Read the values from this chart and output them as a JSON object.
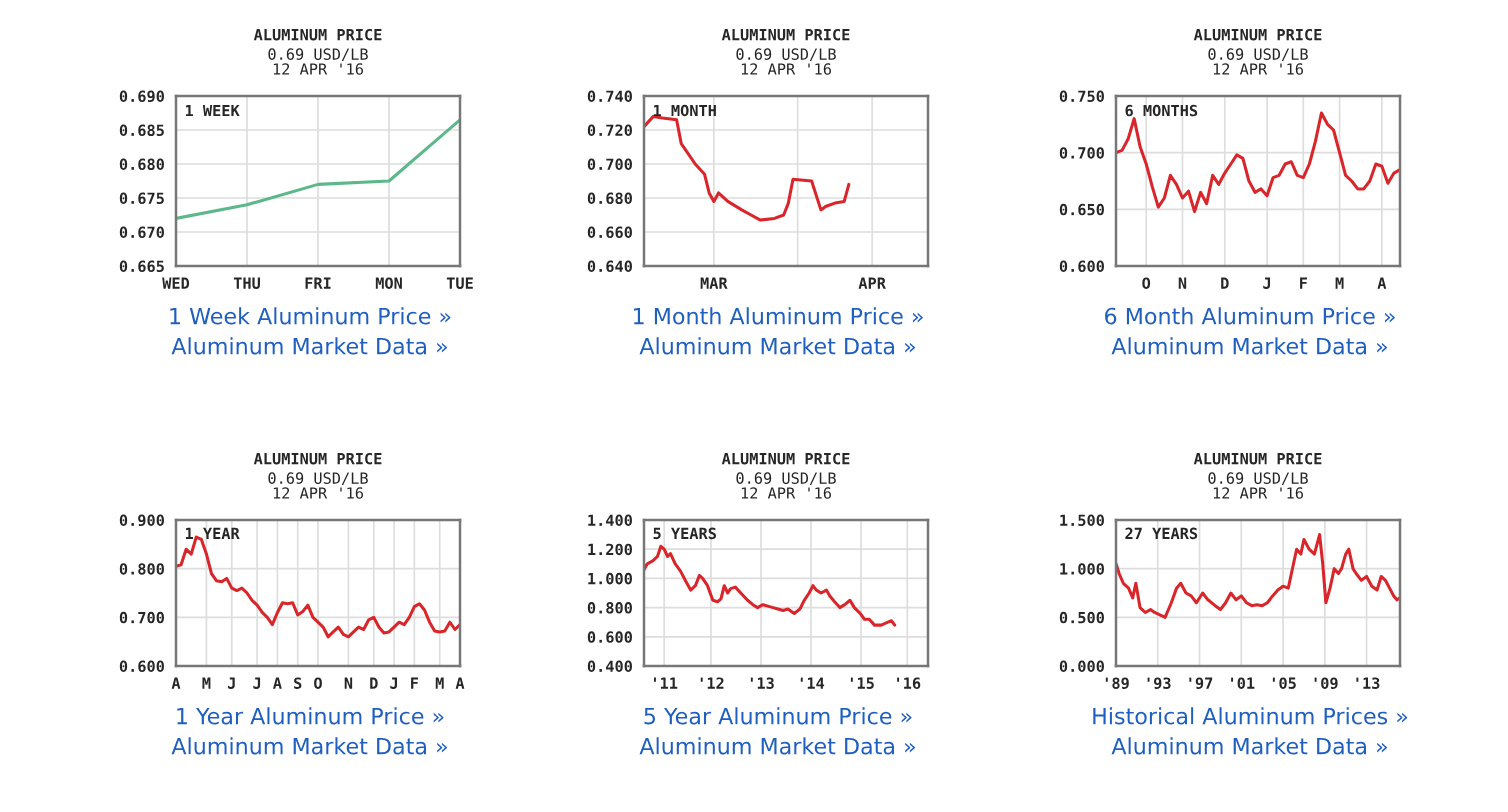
{
  "chart_data": [
    {
      "type": "line",
      "title": "ALUMINUM PRICE",
      "subtitle": "0.69 USD/LB\n12 APR '16",
      "annotations": [
        "1 WEEK",
        "1 Week Aluminum Price »",
        "Aluminum Market Data »"
      ],
      "grid": true,
      "categories": [
        "WED",
        "THU",
        "FRI",
        "MON",
        "TUE"
      ],
      "ylim": [
        0.665,
        0.69
      ],
      "yticks": [
        {
          "value": 0.665,
          "label": "0.665"
        },
        {
          "value": 0.67,
          "label": "0.670"
        },
        {
          "value": 0.675,
          "label": "0.675"
        },
        {
          "value": 0.68,
          "label": "0.680"
        },
        {
          "value": 0.685,
          "label": "0.685"
        },
        {
          "value": 0.69,
          "label": "0.690"
        }
      ],
      "series": [
        {
          "color": "#5cb88a",
          "values": [
            0.672,
            0.674,
            0.677,
            0.6775,
            0.6865
          ]
        }
      ]
    },
    {
      "type": "line",
      "title": "ALUMINUM PRICE",
      "subtitle": "0.69 USD/LB\n12 APR '16",
      "annotations": [
        "1 MONTH",
        "1 Month Aluminum Price »",
        "Aluminum Market Data »"
      ],
      "grid": true,
      "xlim": [
        "2016-02-28",
        "2016-04-29"
      ],
      "xticks": [
        {
          "value": "2016-03-14",
          "label": "MAR"
        },
        {
          "value": "2016-04-01",
          "label": null
        },
        {
          "value": "2016-04-17",
          "label": "APR"
        }
      ],
      "ylim": [
        0.64,
        0.74
      ],
      "yticks": [
        {
          "value": 0.64,
          "label": "0.640"
        },
        {
          "value": 0.66,
          "label": "0.660"
        },
        {
          "value": 0.68,
          "label": "0.680"
        },
        {
          "value": 0.7,
          "label": "0.700"
        },
        {
          "value": 0.72,
          "label": "0.720"
        },
        {
          "value": 0.74,
          "label": "0.740"
        }
      ],
      "series": [
        {
          "color": "#d9262b",
          "x": [
            "2016-02-28",
            "2016-03-01",
            "2016-03-03",
            "2016-03-06",
            "2016-03-07",
            "2016-03-08",
            "2016-03-10",
            "2016-03-12",
            "2016-03-13",
            "2016-03-14",
            "2016-03-15",
            "2016-03-17",
            "2016-03-20",
            "2016-03-22",
            "2016-03-24",
            "2016-03-27",
            "2016-03-29",
            "2016-03-30",
            "2016-03-31",
            "2016-04-04",
            "2016-04-06",
            "2016-04-07",
            "2016-04-09",
            "2016-04-11",
            "2016-04-12"
          ],
          "values": [
            0.722,
            0.728,
            0.727,
            0.726,
            0.712,
            0.708,
            0.7,
            0.694,
            0.683,
            0.678,
            0.683,
            0.678,
            0.673,
            0.67,
            0.667,
            0.668,
            0.67,
            0.677,
            0.691,
            0.69,
            0.673,
            0.675,
            0.677,
            0.678,
            0.688
          ]
        }
      ]
    },
    {
      "type": "line",
      "title": "ALUMINUM PRICE",
      "subtitle": "0.69 USD/LB\n12 APR '16",
      "annotations": [
        "6 MONTHS",
        "6 Month Aluminum Price »",
        "Aluminum Market Data »"
      ],
      "grid": true,
      "categories": [
        null,
        null,
        null,
        null,
        null,
        "O",
        null,
        null,
        null,
        null,
        null,
        "N",
        null,
        null,
        null,
        null,
        null,
        null,
        "D",
        null,
        null,
        null,
        null,
        null,
        null,
        "J",
        null,
        null,
        null,
        null,
        null,
        "F",
        null,
        null,
        null,
        null,
        null,
        "M",
        null,
        null,
        null,
        null,
        null,
        null,
        "A",
        null,
        null,
        null
      ],
      "ylim": [
        0.6,
        0.75
      ],
      "yticks": [
        {
          "value": 0.6,
          "label": "0.600"
        },
        {
          "value": 0.65,
          "label": "0.650"
        },
        {
          "value": 0.7,
          "label": "0.700"
        },
        {
          "value": 0.75,
          "label": "0.750"
        }
      ],
      "series": [
        {
          "color": "#d9262b",
          "values": [
            0.7,
            0.702,
            0.712,
            0.73,
            0.705,
            0.69,
            0.67,
            0.652,
            0.66,
            0.68,
            0.672,
            0.66,
            0.666,
            0.648,
            0.665,
            0.655,
            0.68,
            0.672,
            0.682,
            0.69,
            0.698,
            0.695,
            0.675,
            0.665,
            0.668,
            0.662,
            0.678,
            0.68,
            0.69,
            0.692,
            0.68,
            0.678,
            0.69,
            0.71,
            0.735,
            0.725,
            0.72,
            0.7,
            0.68,
            0.675,
            0.668,
            0.668,
            0.675,
            0.69,
            0.688,
            0.673,
            0.682,
            0.685
          ]
        }
      ]
    },
    {
      "type": "line",
      "title": "ALUMINUM PRICE",
      "subtitle": "0.69 USD/LB\n12 APR '16",
      "annotations": [
        "1 YEAR",
        "1 Year Aluminum Price »",
        "Aluminum Market Data »"
      ],
      "grid": true,
      "categories": [
        "A",
        null,
        null,
        null,
        null,
        null,
        "M",
        null,
        null,
        null,
        null,
        "J",
        null,
        null,
        null,
        null,
        "J",
        null,
        null,
        null,
        "A",
        null,
        null,
        null,
        "S",
        null,
        null,
        null,
        "O",
        null,
        null,
        null,
        null,
        null,
        "N",
        null,
        null,
        null,
        null,
        "D",
        null,
        null,
        null,
        "J",
        null,
        null,
        null,
        "F",
        null,
        null,
        null,
        null,
        "M",
        null,
        null,
        null,
        "A"
      ],
      "ylim": [
        0.6,
        0.9
      ],
      "yticks": [
        {
          "value": 0.6,
          "label": "0.600"
        },
        {
          "value": 0.7,
          "label": "0.700"
        },
        {
          "value": 0.8,
          "label": "0.800"
        },
        {
          "value": 0.9,
          "label": "0.900"
        }
      ],
      "series": [
        {
          "color": "#d9262b",
          "values": [
            0.805,
            0.808,
            0.84,
            0.83,
            0.865,
            0.86,
            0.83,
            0.79,
            0.775,
            0.773,
            0.78,
            0.76,
            0.755,
            0.76,
            0.75,
            0.735,
            0.725,
            0.71,
            0.7,
            0.685,
            0.71,
            0.73,
            0.728,
            0.73,
            0.705,
            0.712,
            0.725,
            0.7,
            0.69,
            0.68,
            0.66,
            0.67,
            0.68,
            0.665,
            0.66,
            0.67,
            0.68,
            0.675,
            0.695,
            0.7,
            0.68,
            0.668,
            0.67,
            0.68,
            0.69,
            0.685,
            0.7,
            0.722,
            0.728,
            0.715,
            0.69,
            0.672,
            0.67,
            0.672,
            0.69,
            0.675,
            0.685
          ]
        }
      ]
    },
    {
      "type": "line",
      "title": "ALUMINUM PRICE",
      "subtitle": "0.69 USD/LB\n12 APR '16",
      "annotations": [
        "5 YEARS",
        "5 Year Aluminum Price »",
        "Aluminum Market Data »"
      ],
      "grid": true,
      "xlim": [
        "2010-11-21",
        "2016-10-15"
      ],
      "xticks": [
        {
          "value": "2011-04-23",
          "label": "'11"
        },
        {
          "value": "2012-04-12",
          "label": "'12"
        },
        {
          "value": "2013-04-27",
          "label": "'13"
        },
        {
          "value": "2014-05-11",
          "label": "'14"
        },
        {
          "value": "2015-05-26",
          "label": "'15"
        },
        {
          "value": "2016-05-11",
          "label": "'16"
        }
      ],
      "ylim": [
        0.4,
        1.4
      ],
      "yticks": [
        {
          "value": 0.4,
          "label": "0.400"
        },
        {
          "value": 0.6,
          "label": "0.600"
        },
        {
          "value": 0.8,
          "label": "0.800"
        },
        {
          "value": 1.0,
          "label": "1.000"
        },
        {
          "value": 1.2,
          "label": "1.200"
        },
        {
          "value": 1.4,
          "label": "1.400"
        }
      ],
      "series": [
        {
          "color": "#d9262b",
          "x": [
            "2010-11-21",
            "2010-12-16",
            "2011-01-26",
            "2011-03-03",
            "2011-03-29",
            "2011-04-23",
            "2011-05-19",
            "2011-06-10",
            "2011-07-16",
            "2011-08-25",
            "2011-10-04",
            "2011-11-10",
            "2011-12-16",
            "2012-01-15",
            "2012-02-09",
            "2012-03-17",
            "2012-04-26",
            "2012-06-01",
            "2012-06-27",
            "2012-07-22",
            "2012-08-17",
            "2012-09-08",
            "2012-10-14",
            "2012-11-24",
            "2013-01-15",
            "2013-02-24",
            "2013-04-01",
            "2013-05-11",
            "2013-06-17",
            "2013-07-27",
            "2013-09-02",
            "2013-10-12",
            "2013-11-17",
            "2014-01-04",
            "2014-02-16",
            "2014-03-21",
            "2014-04-27",
            "2014-05-26",
            "2014-06-21",
            "2014-07-27",
            "2014-09-05",
            "2014-10-01",
            "2014-11-06",
            "2014-12-16",
            "2015-01-22",
            "2015-03-03",
            "2015-04-05",
            "2015-05-19",
            "2015-06-21",
            "2015-07-27",
            "2015-09-05",
            "2015-10-26",
            "2015-12-16",
            "2016-01-11",
            "2016-02-06"
          ],
          "values": [
            1.06,
            1.1,
            1.12,
            1.15,
            1.22,
            1.2,
            1.15,
            1.17,
            1.1,
            1.05,
            0.98,
            0.92,
            0.95,
            1.02,
            1.0,
            0.95,
            0.85,
            0.84,
            0.86,
            0.95,
            0.9,
            0.93,
            0.94,
            0.9,
            0.85,
            0.82,
            0.8,
            0.82,
            0.81,
            0.8,
            0.79,
            0.78,
            0.79,
            0.76,
            0.79,
            0.85,
            0.9,
            0.95,
            0.92,
            0.9,
            0.92,
            0.88,
            0.84,
            0.8,
            0.82,
            0.85,
            0.8,
            0.76,
            0.72,
            0.72,
            0.68,
            0.68,
            0.7,
            0.71,
            0.68
          ]
        }
      ]
    },
    {
      "type": "line",
      "title": "ALUMINUM PRICE",
      "subtitle": "0.69 USD/LB\n12 APR '16",
      "annotations": [
        "27 YEARS",
        "Historical Aluminum Prices »",
        "Aluminum Market Data »"
      ],
      "grid": true,
      "xlim": [
        1989,
        2016.2
      ],
      "xticks": [
        {
          "value": 1989,
          "label": "'89"
        },
        {
          "value": 1993,
          "label": "'93"
        },
        {
          "value": 1997,
          "label": "'97"
        },
        {
          "value": 2001,
          "label": "'01"
        },
        {
          "value": 2005,
          "label": "'05"
        },
        {
          "value": 2009,
          "label": "'09"
        },
        {
          "value": 2013,
          "label": "'13"
        }
      ],
      "ylim": [
        0,
        1.5
      ],
      "yticks": [
        {
          "value": 0,
          "label": "0.000"
        },
        {
          "value": 0.5,
          "label": "0.500"
        },
        {
          "value": 1.0,
          "label": "1.000"
        },
        {
          "value": 1.5,
          "label": "1.500"
        }
      ],
      "series": [
        {
          "color": "#d9262b",
          "x": [
            1989.0,
            1989.3,
            1989.7,
            1990.2,
            1990.6,
            1990.9,
            1991.3,
            1991.8,
            1992.3,
            1992.7,
            1993.3,
            1993.7,
            1994.3,
            1994.8,
            1995.2,
            1995.7,
            1996.2,
            1996.7,
            1997.3,
            1997.8,
            1998.5,
            1999.0,
            1999.5,
            2000.0,
            2000.5,
            2001.0,
            2001.5,
            2002.0,
            2002.5,
            2003.0,
            2003.5,
            2004.0,
            2004.5,
            2005.0,
            2005.5,
            2006.0,
            2006.3,
            2006.7,
            2007.0,
            2007.5,
            2008.0,
            2008.5,
            2008.8,
            2009.1,
            2009.5,
            2009.9,
            2010.3,
            2010.6,
            2011.0,
            2011.3,
            2011.7,
            2012.0,
            2012.5,
            2013.0,
            2013.5,
            2014.0,
            2014.4,
            2014.8,
            2015.2,
            2015.6,
            2015.9,
            2016.2
          ],
          "values": [
            1.05,
            0.95,
            0.85,
            0.8,
            0.7,
            0.85,
            0.6,
            0.55,
            0.58,
            0.55,
            0.52,
            0.5,
            0.65,
            0.8,
            0.85,
            0.75,
            0.72,
            0.65,
            0.75,
            0.68,
            0.62,
            0.58,
            0.65,
            0.75,
            0.68,
            0.72,
            0.65,
            0.62,
            0.63,
            0.62,
            0.65,
            0.72,
            0.78,
            0.82,
            0.8,
            1.05,
            1.2,
            1.15,
            1.3,
            1.2,
            1.15,
            1.35,
            1.05,
            0.65,
            0.8,
            1.0,
            0.95,
            1.0,
            1.15,
            1.2,
            1.0,
            0.95,
            0.88,
            0.92,
            0.82,
            0.78,
            0.92,
            0.88,
            0.8,
            0.72,
            0.68,
            0.7
          ]
        }
      ]
    }
  ]
}
